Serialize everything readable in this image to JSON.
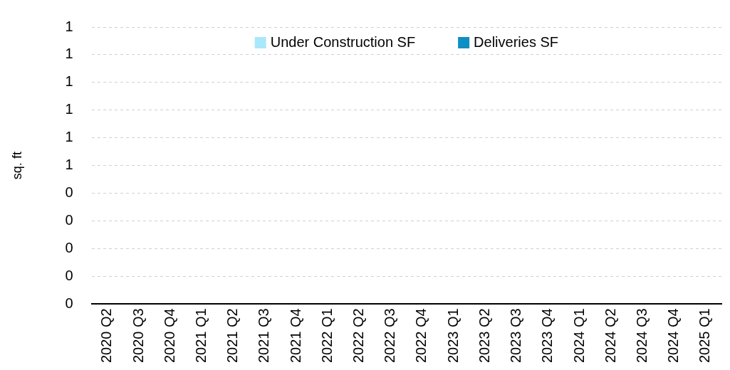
{
  "chart_data": {
    "type": "bar",
    "ylabel": "sq. ft",
    "categories": [
      "2020 Q2",
      "2020 Q3",
      "2020 Q4",
      "2021 Q1",
      "2021 Q2",
      "2021 Q3",
      "2021 Q4",
      "2022 Q1",
      "2022 Q2",
      "2022 Q3",
      "2022 Q4",
      "2023 Q1",
      "2023 Q2",
      "2023 Q3",
      "2023 Q4",
      "2024 Q1",
      "2024 Q2",
      "2024 Q3",
      "2024 Q4",
      "2025 Q1"
    ],
    "series": [
      {
        "name": "Under Construction SF",
        "color": "#a9e8fa",
        "values": [
          0,
          0,
          0,
          0,
          0,
          0,
          0,
          0,
          0,
          0,
          0,
          0,
          0,
          0,
          0,
          0,
          0,
          0,
          0,
          0
        ]
      },
      {
        "name": "Deliveries SF",
        "color": "#0e8fc2",
        "values": [
          0,
          0,
          0,
          0,
          0,
          0,
          0,
          0,
          0,
          0,
          0,
          0,
          0,
          0,
          0,
          0,
          0,
          0,
          0,
          0
        ]
      }
    ],
    "ylim": [
      0,
      1
    ],
    "yticks": [
      {
        "value": 0,
        "label": "0"
      },
      {
        "value": 0.1,
        "label": "0"
      },
      {
        "value": 0.2,
        "label": "0"
      },
      {
        "value": 0.3,
        "label": "0"
      },
      {
        "value": 0.4,
        "label": "0"
      },
      {
        "value": 0.5,
        "label": "1"
      },
      {
        "value": 0.6,
        "label": "1"
      },
      {
        "value": 0.7,
        "label": "1"
      },
      {
        "value": 0.8,
        "label": "1"
      },
      {
        "value": 0.9,
        "label": "1"
      },
      {
        "value": 1,
        "label": "1"
      }
    ],
    "grid": "y",
    "legend": "top"
  }
}
